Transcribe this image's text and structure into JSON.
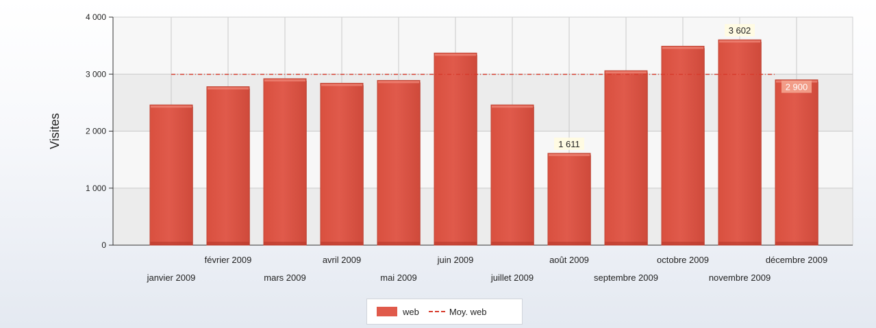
{
  "chart_data": {
    "type": "bar",
    "categories": [
      "janvier 2009",
      "février 2009",
      "mars 2009",
      "avril 2009",
      "mai 2009",
      "juin 2009",
      "juillet 2009",
      "août 2009",
      "septembre 2009",
      "octobre 2009",
      "novembre 2009",
      "décembre 2009"
    ],
    "series": [
      {
        "name": "web",
        "values": [
          2460,
          2780,
          2920,
          2840,
          2890,
          3370,
          2460,
          1611,
          3060,
          3490,
          3602,
          2900
        ]
      }
    ],
    "average": {
      "name": "Moy. web",
      "value": 2900
    },
    "data_labels": [
      {
        "index": 7,
        "text": "1 611"
      },
      {
        "index": 10,
        "text": "3 602"
      },
      {
        "index": 11,
        "text": "2 900"
      }
    ],
    "title": "",
    "xlabel": "",
    "ylabel": "Visites",
    "ylim": [
      0,
      4000
    ],
    "yticks": [
      0,
      1000,
      2000,
      3000,
      4000
    ],
    "ytick_labels": [
      "0",
      "1 000",
      "2 000",
      "3 000",
      "4 000"
    ],
    "grid": true,
    "legend_position": "bottom-center",
    "colors": {
      "bar": "#e05a4b",
      "bar_dark": "#b8392c",
      "average_line": "#d73a2b",
      "band": "#ececec",
      "gridline": "#c9c9c9"
    }
  }
}
